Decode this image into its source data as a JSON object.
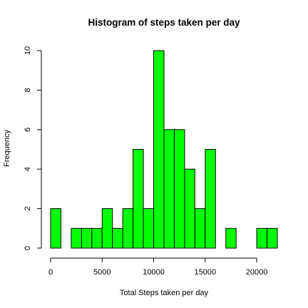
{
  "chart_data": {
    "type": "bar",
    "title": "Histogram of steps taken per day",
    "xlabel": "Total Steps taken per day",
    "ylabel": "Frequency",
    "bar_color": "#00FF00",
    "bin_width": 1000,
    "xlim": [
      0,
      22000
    ],
    "ylim": [
      0,
      10
    ],
    "x_ticks": [
      0,
      5000,
      10000,
      15000,
      20000
    ],
    "y_ticks": [
      0,
      2,
      4,
      6,
      8,
      10
    ],
    "bins": [
      {
        "start": 0,
        "end": 1000,
        "count": 2
      },
      {
        "start": 1000,
        "end": 2000,
        "count": 0
      },
      {
        "start": 2000,
        "end": 3000,
        "count": 1
      },
      {
        "start": 3000,
        "end": 4000,
        "count": 1
      },
      {
        "start": 4000,
        "end": 5000,
        "count": 1
      },
      {
        "start": 5000,
        "end": 6000,
        "count": 2
      },
      {
        "start": 6000,
        "end": 7000,
        "count": 1
      },
      {
        "start": 7000,
        "end": 8000,
        "count": 2
      },
      {
        "start": 8000,
        "end": 9000,
        "count": 5
      },
      {
        "start": 9000,
        "end": 10000,
        "count": 2
      },
      {
        "start": 10000,
        "end": 11000,
        "count": 10
      },
      {
        "start": 11000,
        "end": 12000,
        "count": 6
      },
      {
        "start": 12000,
        "end": 13000,
        "count": 6
      },
      {
        "start": 13000,
        "end": 14000,
        "count": 4
      },
      {
        "start": 14000,
        "end": 15000,
        "count": 2
      },
      {
        "start": 15000,
        "end": 16000,
        "count": 5
      },
      {
        "start": 16000,
        "end": 17000,
        "count": 0
      },
      {
        "start": 17000,
        "end": 18000,
        "count": 1
      },
      {
        "start": 18000,
        "end": 19000,
        "count": 0
      },
      {
        "start": 19000,
        "end": 20000,
        "count": 0
      },
      {
        "start": 20000,
        "end": 21000,
        "count": 1
      },
      {
        "start": 21000,
        "end": 22000,
        "count": 1
      }
    ]
  }
}
